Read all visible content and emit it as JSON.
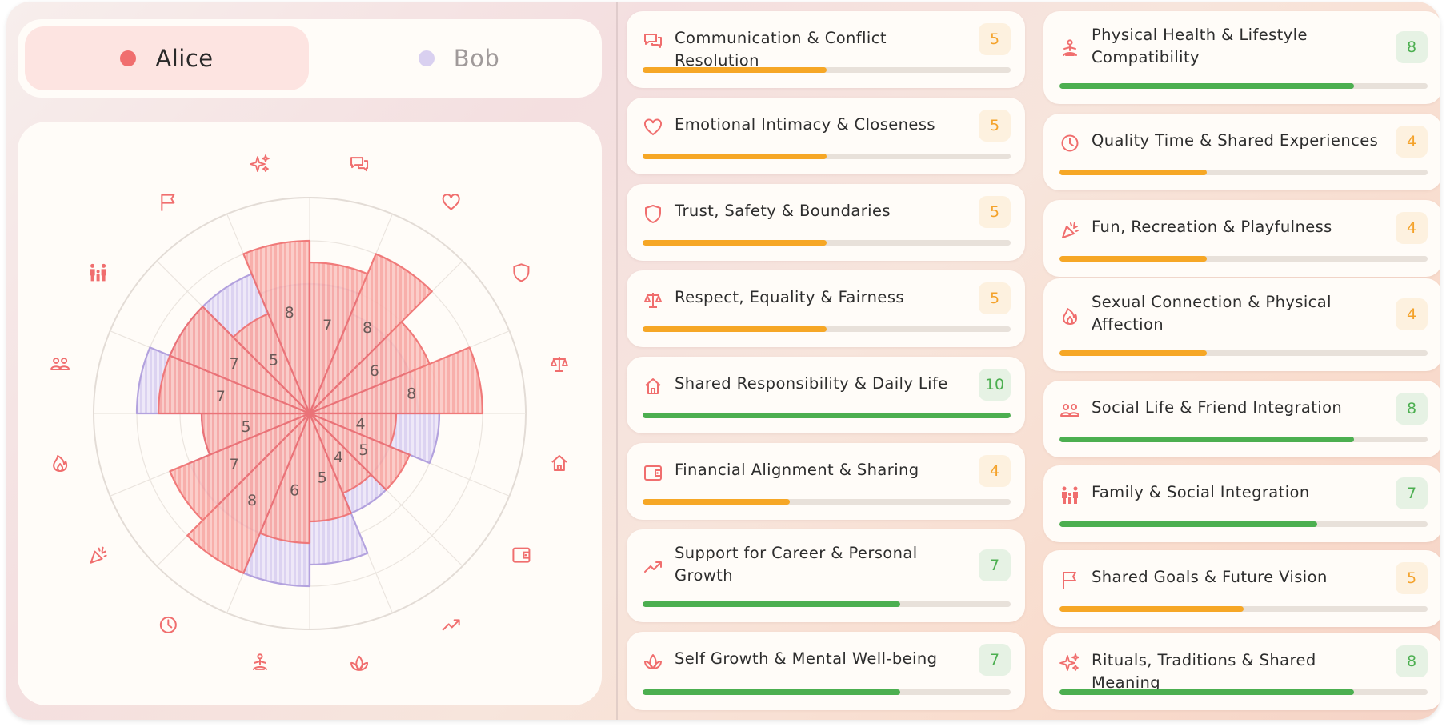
{
  "toggle": {
    "alice_label": "Alice",
    "bob_label": "Bob",
    "selected": "Alice"
  },
  "colors": {
    "alice": "#f06e6e",
    "bob": "#d6ccee",
    "mid_score": "#f4a22a",
    "high_score": "#4caf50"
  },
  "chart_data": {
    "type": "polar-area",
    "max_value": 10,
    "icons": [
      "chat-icon",
      "heart-icon",
      "shield-icon",
      "scales-icon",
      "home-icon",
      "wallet-icon",
      "trending-up-icon",
      "lotus-icon",
      "meditation-icon",
      "clock-icon",
      "party-popper-icon",
      "flame-icon",
      "people-icon",
      "family-icon",
      "flag-icon",
      "sparkles-icon"
    ],
    "series": [
      {
        "name": "Alice",
        "values": [
          7,
          8,
          6,
          8,
          4,
          5,
          4,
          5,
          6,
          8,
          7,
          5,
          7,
          7,
          5,
          8
        ]
      },
      {
        "name": "Bob",
        "values": [
          6,
          5,
          5,
          5,
          6,
          4,
          5,
          7,
          8,
          6,
          6,
          5,
          8,
          7,
          7,
          6
        ]
      }
    ],
    "labels": [
      {
        "index": 0,
        "value": "7"
      },
      {
        "index": 1,
        "value": "8"
      },
      {
        "index": 2,
        "value": "6"
      },
      {
        "index": 3,
        "value": "8"
      },
      {
        "index": 4,
        "value": "4"
      },
      {
        "index": 5,
        "value": "5"
      },
      {
        "index": 6,
        "value": "4"
      },
      {
        "index": 7,
        "value": "5"
      },
      {
        "index": 8,
        "value": "6"
      },
      {
        "index": 9,
        "value": "8"
      },
      {
        "index": 10,
        "value": "7"
      },
      {
        "index": 11,
        "value": "5"
      },
      {
        "index": 12,
        "value": "7"
      },
      {
        "index": 13,
        "value": "7"
      },
      {
        "index": 14,
        "value": "5"
      },
      {
        "index": 15,
        "value": "8"
      }
    ]
  },
  "cards": [
    {
      "title": "Communication & Conflict Resolution",
      "score": 5,
      "level": "mid",
      "icon": "chat-icon"
    },
    {
      "title": "Emotional Intimacy & Closeness",
      "score": 5,
      "level": "mid",
      "icon": "heart-icon"
    },
    {
      "title": "Trust, Safety & Boundaries",
      "score": 5,
      "level": "mid",
      "icon": "shield-icon"
    },
    {
      "title": "Respect, Equality & Fairness",
      "score": 5,
      "level": "mid",
      "icon": "scales-icon"
    },
    {
      "title": "Shared Responsibility & Daily Life",
      "score": 10,
      "level": "high",
      "icon": "home-icon"
    },
    {
      "title": "Financial Alignment & Sharing",
      "score": 4,
      "level": "mid",
      "icon": "wallet-icon"
    },
    {
      "title": "Support for Career & Personal Growth",
      "score": 7,
      "level": "high",
      "icon": "trending-up-icon"
    },
    {
      "title": "Self Growth & Mental Well-being",
      "score": 7,
      "level": "high",
      "icon": "lotus-icon"
    },
    {
      "title": "Physical Health & Lifestyle Compatibility",
      "score": 8,
      "level": "high",
      "icon": "meditation-icon"
    },
    {
      "title": "Quality Time & Shared Experiences",
      "score": 4,
      "level": "mid",
      "icon": "clock-icon"
    },
    {
      "title": "Fun, Recreation & Playfulness",
      "score": 4,
      "level": "mid",
      "icon": "party-popper-icon"
    },
    {
      "title": "Sexual Connection & Physical Affection",
      "score": 4,
      "level": "mid",
      "icon": "flame-icon"
    },
    {
      "title": "Social Life & Friend Integration",
      "score": 8,
      "level": "high",
      "icon": "people-icon"
    },
    {
      "title": "Family & Social Integration",
      "score": 7,
      "level": "high",
      "icon": "family-icon"
    },
    {
      "title": "Shared Goals & Future Vision",
      "score": 5,
      "level": "mid",
      "icon": "flag-icon"
    },
    {
      "title": "Rituals, Traditions & Shared Meaning",
      "score": 8,
      "level": "high",
      "icon": "sparkles-icon"
    }
  ]
}
